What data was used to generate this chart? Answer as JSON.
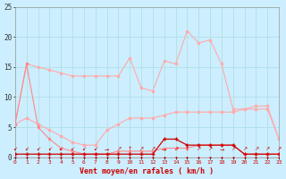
{
  "x": [
    0,
    1,
    2,
    3,
    4,
    5,
    6,
    7,
    8,
    9,
    10,
    11,
    12,
    13,
    14,
    15,
    16,
    17,
    18,
    19,
    20,
    21,
    22,
    23
  ],
  "line_rafales": [
    5.5,
    15.5,
    15.0,
    14.5,
    14.0,
    13.5,
    13.5,
    13.5,
    13.5,
    13.5,
    16.5,
    11.5,
    11.0,
    16.0,
    15.5,
    21.0,
    19.0,
    19.5,
    15.5,
    8.0,
    8.0,
    8.5,
    8.5,
    3.0
  ],
  "line_moyen": [
    5.5,
    6.5,
    5.5,
    4.5,
    3.5,
    2.5,
    2.0,
    2.0,
    4.5,
    5.5,
    6.5,
    6.5,
    6.5,
    7.0,
    7.5,
    7.5,
    7.5,
    7.5,
    7.5,
    7.5,
    8.0,
    8.0,
    8.0,
    3.0
  ],
  "line_pink1": [
    5.5,
    15.5,
    5.0,
    3.0,
    1.5,
    1.0,
    0.5,
    0.5,
    0.5,
    1.0,
    1.0,
    1.0,
    1.0,
    1.5,
    1.5,
    1.5,
    2.0,
    2.0,
    2.0,
    2.0,
    0.5,
    0.5,
    0.5,
    0.5
  ],
  "line_red1": [
    0.5,
    0.5,
    0.5,
    0.5,
    0.5,
    0.5,
    0.5,
    0.5,
    0.5,
    0.5,
    0.5,
    0.5,
    0.5,
    3.0,
    3.0,
    2.0,
    2.0,
    2.0,
    2.0,
    2.0,
    0.5,
    0.5,
    0.5,
    0.5
  ],
  "line_red2": [
    0.0,
    0.0,
    0.0,
    0.0,
    0.0,
    0.0,
    0.0,
    0.0,
    0.0,
    0.0,
    0.0,
    0.0,
    0.0,
    0.0,
    0.0,
    0.0,
    0.0,
    0.0,
    0.0,
    0.0,
    0.0,
    0.0,
    0.0,
    0.0
  ],
  "color_rafales": "#ffaaaa",
  "color_moyen": "#ffaaaa",
  "color_pink1": "#ff8888",
  "color_red1": "#cc0000",
  "color_red2": "#cc0000",
  "bg_color": "#cceeff",
  "grid_color": "#aadddd",
  "xlabel": "Vent moyen/en rafales ( km/h )",
  "xlabel_color": "#cc0000",
  "yticks": [
    0,
    5,
    10,
    15,
    20,
    25
  ],
  "xticks": [
    0,
    1,
    2,
    3,
    4,
    5,
    6,
    7,
    8,
    9,
    10,
    11,
    12,
    13,
    14,
    15,
    16,
    17,
    18,
    19,
    20,
    21,
    22,
    23
  ],
  "ylim": [
    0,
    25
  ],
  "xlim": [
    0,
    23
  ]
}
